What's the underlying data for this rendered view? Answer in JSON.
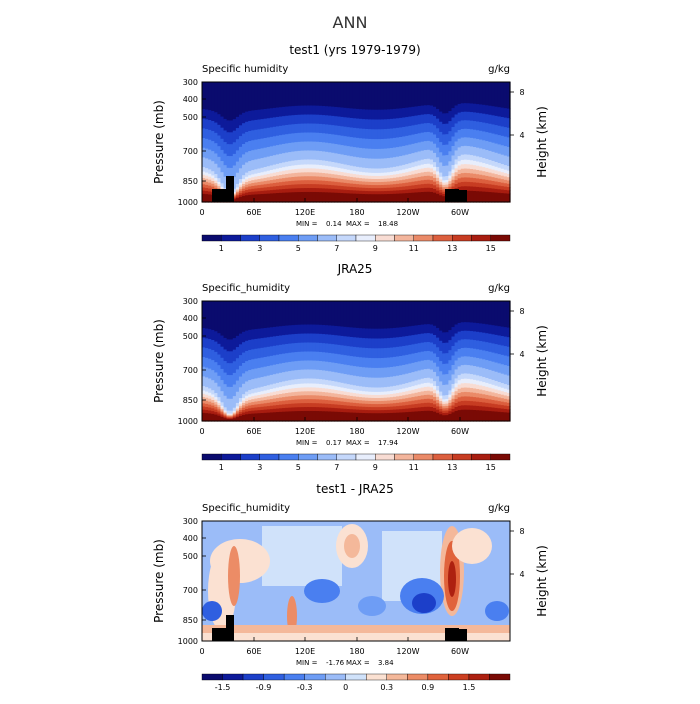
{
  "figure": {
    "title": "ANN"
  },
  "colors": {
    "heat_scale": [
      "#0a0b6e",
      "#0d1a9a",
      "#1c3fc9",
      "#2f5fe0",
      "#4a7ff0",
      "#6e9df5",
      "#9bbcf8",
      "#c5d8fb",
      "#e8eefc",
      "#f8dcd3",
      "#f3b59c",
      "#ea8a68",
      "#dc5f3e",
      "#c73c22",
      "#a81d10",
      "#7a0a05"
    ],
    "diff_scale": [
      "#0a0b6e",
      "#0d1a9a",
      "#1c3fc9",
      "#2f5fe0",
      "#4a7ff0",
      "#6e9df5",
      "#9bbcf8",
      "#d0e2fa",
      "#fbe1d2",
      "#f4b89a",
      "#ec8c66",
      "#e0633c",
      "#cc3f21",
      "#ad2010",
      "#7a0a05"
    ],
    "topo": "#000000"
  },
  "chart_data": [
    {
      "type": "heatmap",
      "id": "test1",
      "title": "test1 (yrs 1979-1979)",
      "left_label": "Specific humidity",
      "units": "g/kg",
      "ylabel": "Pressure (mb)",
      "y2label": "Height (km)",
      "xticks": [
        "0",
        "60E",
        "120E",
        "180",
        "120W",
        "60W"
      ],
      "yticks": [
        "300",
        "400",
        "500",
        "700",
        "850",
        "1000"
      ],
      "y2ticks": [
        "8",
        "4"
      ],
      "min_label": "MIN =",
      "min": "0.14",
      "max_label": "MAX =",
      "max": "18.48",
      "colorbar_labels": [
        "1",
        "3",
        "5",
        "7",
        "9",
        "11",
        "13",
        "15"
      ],
      "topography": true
    },
    {
      "type": "heatmap",
      "id": "jra25",
      "title": "JRA25",
      "left_label": "Specific_humidity",
      "units": "g/kg",
      "ylabel": "Pressure (mb)",
      "y2label": "Height (km)",
      "xticks": [
        "0",
        "60E",
        "120E",
        "180",
        "120W",
        "60W"
      ],
      "yticks": [
        "300",
        "400",
        "500",
        "700",
        "850",
        "1000"
      ],
      "y2ticks": [
        "8",
        "4"
      ],
      "min_label": "MIN =",
      "min": "0.17",
      "max_label": "MAX =",
      "max": "17.94",
      "colorbar_labels": [
        "1",
        "3",
        "5",
        "7",
        "9",
        "11",
        "13",
        "15"
      ],
      "topography": false
    },
    {
      "type": "heatmap",
      "id": "diff",
      "title": "test1 - JRA25",
      "left_label": "Specific_humidity",
      "units": "g/kg",
      "ylabel": "Pressure (mb)",
      "y2label": "Height (km)",
      "xticks": [
        "0",
        "60E",
        "120E",
        "180",
        "120W",
        "60W"
      ],
      "yticks": [
        "300",
        "400",
        "500",
        "700",
        "850",
        "1000"
      ],
      "y2ticks": [
        "8",
        "4"
      ],
      "min_label": "MIN =",
      "min": "-1.76",
      "max_label": "MAX =",
      "max": "3.84",
      "colorbar_labels": [
        "-1.5",
        "-0.9",
        "-0.3",
        "0",
        "0.3",
        "0.9",
        "1.5"
      ],
      "topography": true
    }
  ]
}
